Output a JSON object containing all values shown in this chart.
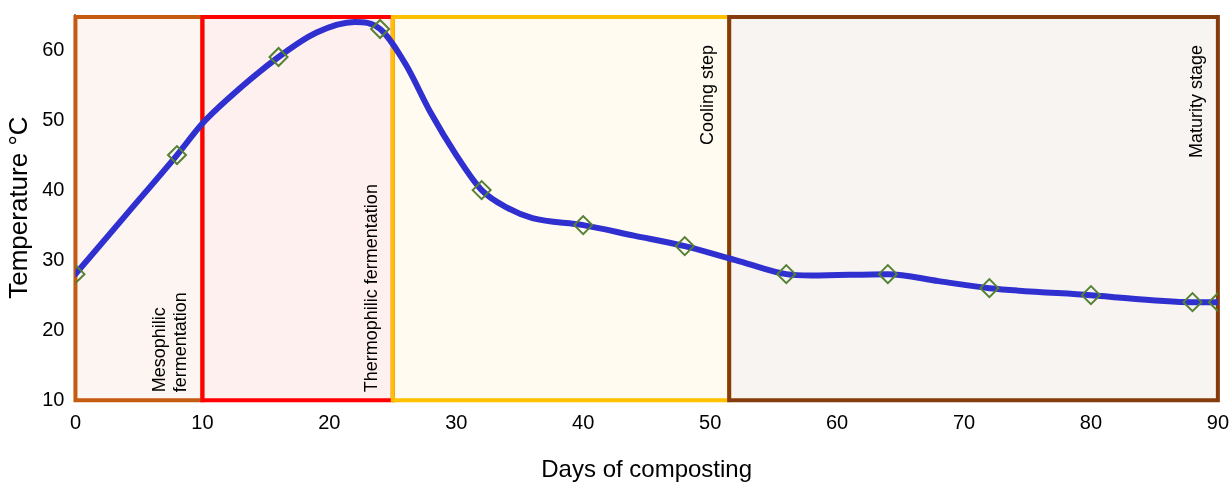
{
  "chart_data": {
    "type": "line",
    "xlabel": "Days of composting",
    "ylabel": "Temperature °C",
    "xlim": [
      0,
      90
    ],
    "xticks": [
      0,
      10,
      20,
      30,
      40,
      50,
      60,
      70,
      80,
      90
    ],
    "ylim": [
      10,
      65
    ],
    "yticks": [
      10,
      20,
      30,
      40,
      50,
      60
    ],
    "grid": false,
    "legend": false,
    "series": [
      {
        "color": "#3030d0",
        "marker": "none",
        "line_style": "solid",
        "x": [
          0,
          4,
          8,
          10,
          12,
          16,
          19,
          22,
          24,
          26,
          28,
          30,
          32,
          34,
          36,
          40,
          44,
          48,
          52,
          56,
          58,
          64,
          68,
          72,
          80,
          88,
          90
        ],
        "values": [
          28,
          36.5,
          45,
          49.5,
          53,
          59,
          62.5,
          64,
          63,
          58,
          51,
          45,
          40,
          37.5,
          36,
          35,
          33.5,
          32,
          30,
          28,
          27.8,
          28,
          27,
          26,
          25,
          24,
          24
        ]
      },
      {
        "type": "scatter",
        "color": "#548235",
        "marker": "diamond",
        "x": [
          0,
          8,
          16,
          24,
          32,
          40,
          48,
          56,
          64,
          72,
          80,
          88,
          90
        ],
        "values": [
          28,
          45,
          59,
          63,
          40,
          35,
          32,
          28,
          28,
          26,
          25,
          24,
          24
        ]
      }
    ],
    "bands": [
      {
        "axis": "x",
        "from": 0,
        "to": 10,
        "label": "Mesophilic\nfermentation",
        "color": "#c55a11"
      },
      {
        "axis": "x",
        "from": 10,
        "to": 25,
        "label": "Thermophilic fermentation",
        "color": "#ff0000"
      },
      {
        "axis": "x",
        "from": 25,
        "to": 51.5,
        "label": "Cooling step",
        "color": "#ffc000"
      },
      {
        "axis": "x",
        "from": 51.5,
        "to": 90,
        "label": "Maturity stage",
        "color": "#843c0c"
      }
    ]
  }
}
